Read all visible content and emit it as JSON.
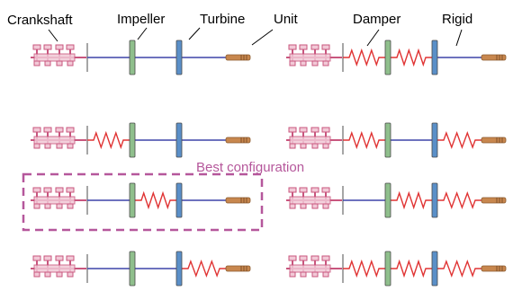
{
  "labels": {
    "crankshaft": "Crankshaft",
    "impeller": "Impeller",
    "turbine": "Turbine",
    "unit": "Unit",
    "damper": "Damper",
    "rigid": "Rigid",
    "best": "Best configuration"
  },
  "colors": {
    "crank": "#c8567e",
    "crank_fill": "#f2c9d7",
    "shaft": "#3d43a8",
    "spring": "#e03434",
    "impeller": "#8fbf8c",
    "turbine": "#5a8fc8",
    "unit": "#c8874e",
    "best": "#b5579b",
    "divider": "#888888"
  },
  "configurations": [
    {
      "id": "left-1",
      "springs": []
    },
    {
      "id": "left-2",
      "springs": [
        "crank-impeller"
      ]
    },
    {
      "id": "left-3",
      "springs": [
        "impeller-turbine"
      ]
    },
    {
      "id": "left-4",
      "springs": [
        "turbine-unit"
      ]
    },
    {
      "id": "right-1",
      "springs": [
        "crank-impeller",
        "impeller-turbine"
      ]
    },
    {
      "id": "right-2",
      "springs": [
        "crank-impeller",
        "turbine-unit"
      ]
    },
    {
      "id": "right-3",
      "springs": [
        "impeller-turbine",
        "turbine-unit"
      ]
    },
    {
      "id": "right-4",
      "springs": [
        "crank-impeller",
        "impeller-turbine",
        "turbine-unit"
      ]
    }
  ],
  "best_configuration_id": "left-3"
}
